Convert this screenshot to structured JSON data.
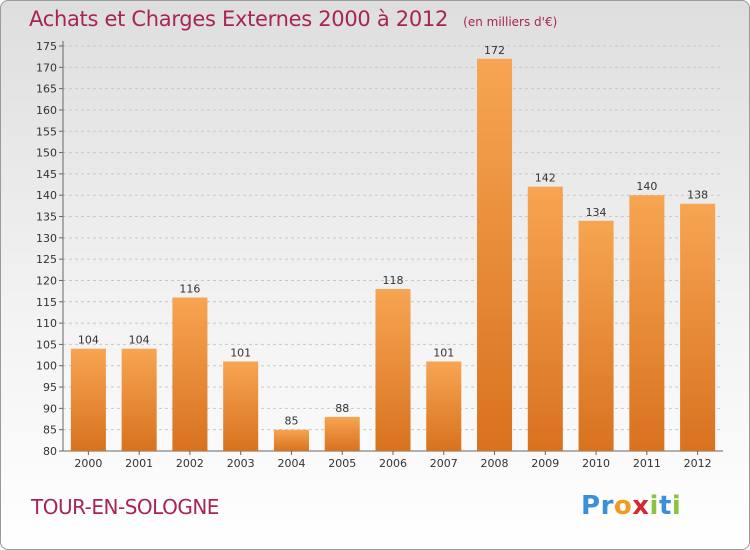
{
  "title": "Achats et Charges Externes 2000 à 2012",
  "unit": "(en milliers d'€)",
  "commune": "TOUR-EN-SOLOGNE",
  "logo": {
    "text": "Proxiti",
    "letters": [
      {
        "ch": "P",
        "color": "#3a8fd6"
      },
      {
        "ch": "r",
        "color": "#3a8fd6"
      },
      {
        "ch": "o",
        "color": "#f29a1f"
      },
      {
        "ch": "x",
        "color": "#d6282e"
      },
      {
        "ch": "i",
        "color": "#8ac43f"
      },
      {
        "ch": "t",
        "color": "#3a8fd6"
      },
      {
        "ch": "i",
        "color": "#8ac43f"
      }
    ]
  },
  "colors": {
    "title": "#a62557",
    "bar_top": "#f7a552",
    "bar_bottom": "#d8721f",
    "grid": "#c8c8c8"
  },
  "chart_data": {
    "type": "bar",
    "categories": [
      "2000",
      "2001",
      "2002",
      "2003",
      "2004",
      "2005",
      "2006",
      "2007",
      "2008",
      "2009",
      "2010",
      "2011",
      "2012"
    ],
    "values": [
      104,
      104,
      116,
      101,
      85,
      88,
      118,
      101,
      172,
      142,
      134,
      140,
      138
    ],
    "ylim": [
      80,
      175
    ],
    "yticks": [
      80,
      85,
      90,
      95,
      100,
      105,
      110,
      115,
      120,
      125,
      130,
      135,
      140,
      145,
      150,
      155,
      160,
      165,
      170,
      175
    ],
    "grid": true,
    "xlabel": "",
    "ylabel": ""
  }
}
